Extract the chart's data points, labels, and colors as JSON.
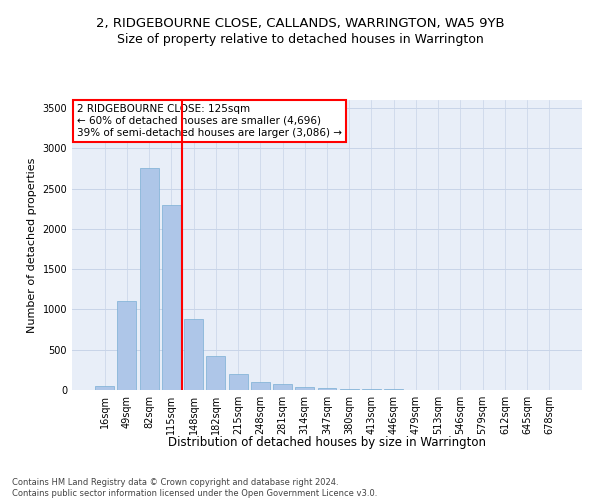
{
  "title": "2, RIDGEBOURNE CLOSE, CALLANDS, WARRINGTON, WA5 9YB",
  "subtitle": "Size of property relative to detached houses in Warrington",
  "xlabel": "Distribution of detached houses by size in Warrington",
  "ylabel": "Number of detached properties",
  "categories": [
    "16sqm",
    "49sqm",
    "82sqm",
    "115sqm",
    "148sqm",
    "182sqm",
    "215sqm",
    "248sqm",
    "281sqm",
    "314sqm",
    "347sqm",
    "380sqm",
    "413sqm",
    "446sqm",
    "479sqm",
    "513sqm",
    "546sqm",
    "579sqm",
    "612sqm",
    "645sqm",
    "678sqm"
  ],
  "values": [
    50,
    1100,
    2750,
    2300,
    880,
    420,
    200,
    100,
    70,
    40,
    20,
    15,
    10,
    8,
    5,
    3,
    2,
    2,
    1,
    1,
    1
  ],
  "bar_color": "#aec6e8",
  "bar_edge_color": "#7aafd4",
  "vline_color": "red",
  "annotation_text": "2 RIDGEBOURNE CLOSE: 125sqm\n← 60% of detached houses are smaller (4,696)\n39% of semi-detached houses are larger (3,086) →",
  "annotation_box_color": "white",
  "annotation_box_edge_color": "red",
  "ylim": [
    0,
    3600
  ],
  "yticks": [
    0,
    500,
    1000,
    1500,
    2000,
    2500,
    3000,
    3500
  ],
  "grid_color": "#c8d4e8",
  "bg_color": "#e8eef8",
  "footnote": "Contains HM Land Registry data © Crown copyright and database right 2024.\nContains public sector information licensed under the Open Government Licence v3.0.",
  "title_fontsize": 9.5,
  "subtitle_fontsize": 9,
  "xlabel_fontsize": 8.5,
  "ylabel_fontsize": 8,
  "tick_fontsize": 7,
  "footnote_fontsize": 6,
  "annotation_fontsize": 7.5
}
